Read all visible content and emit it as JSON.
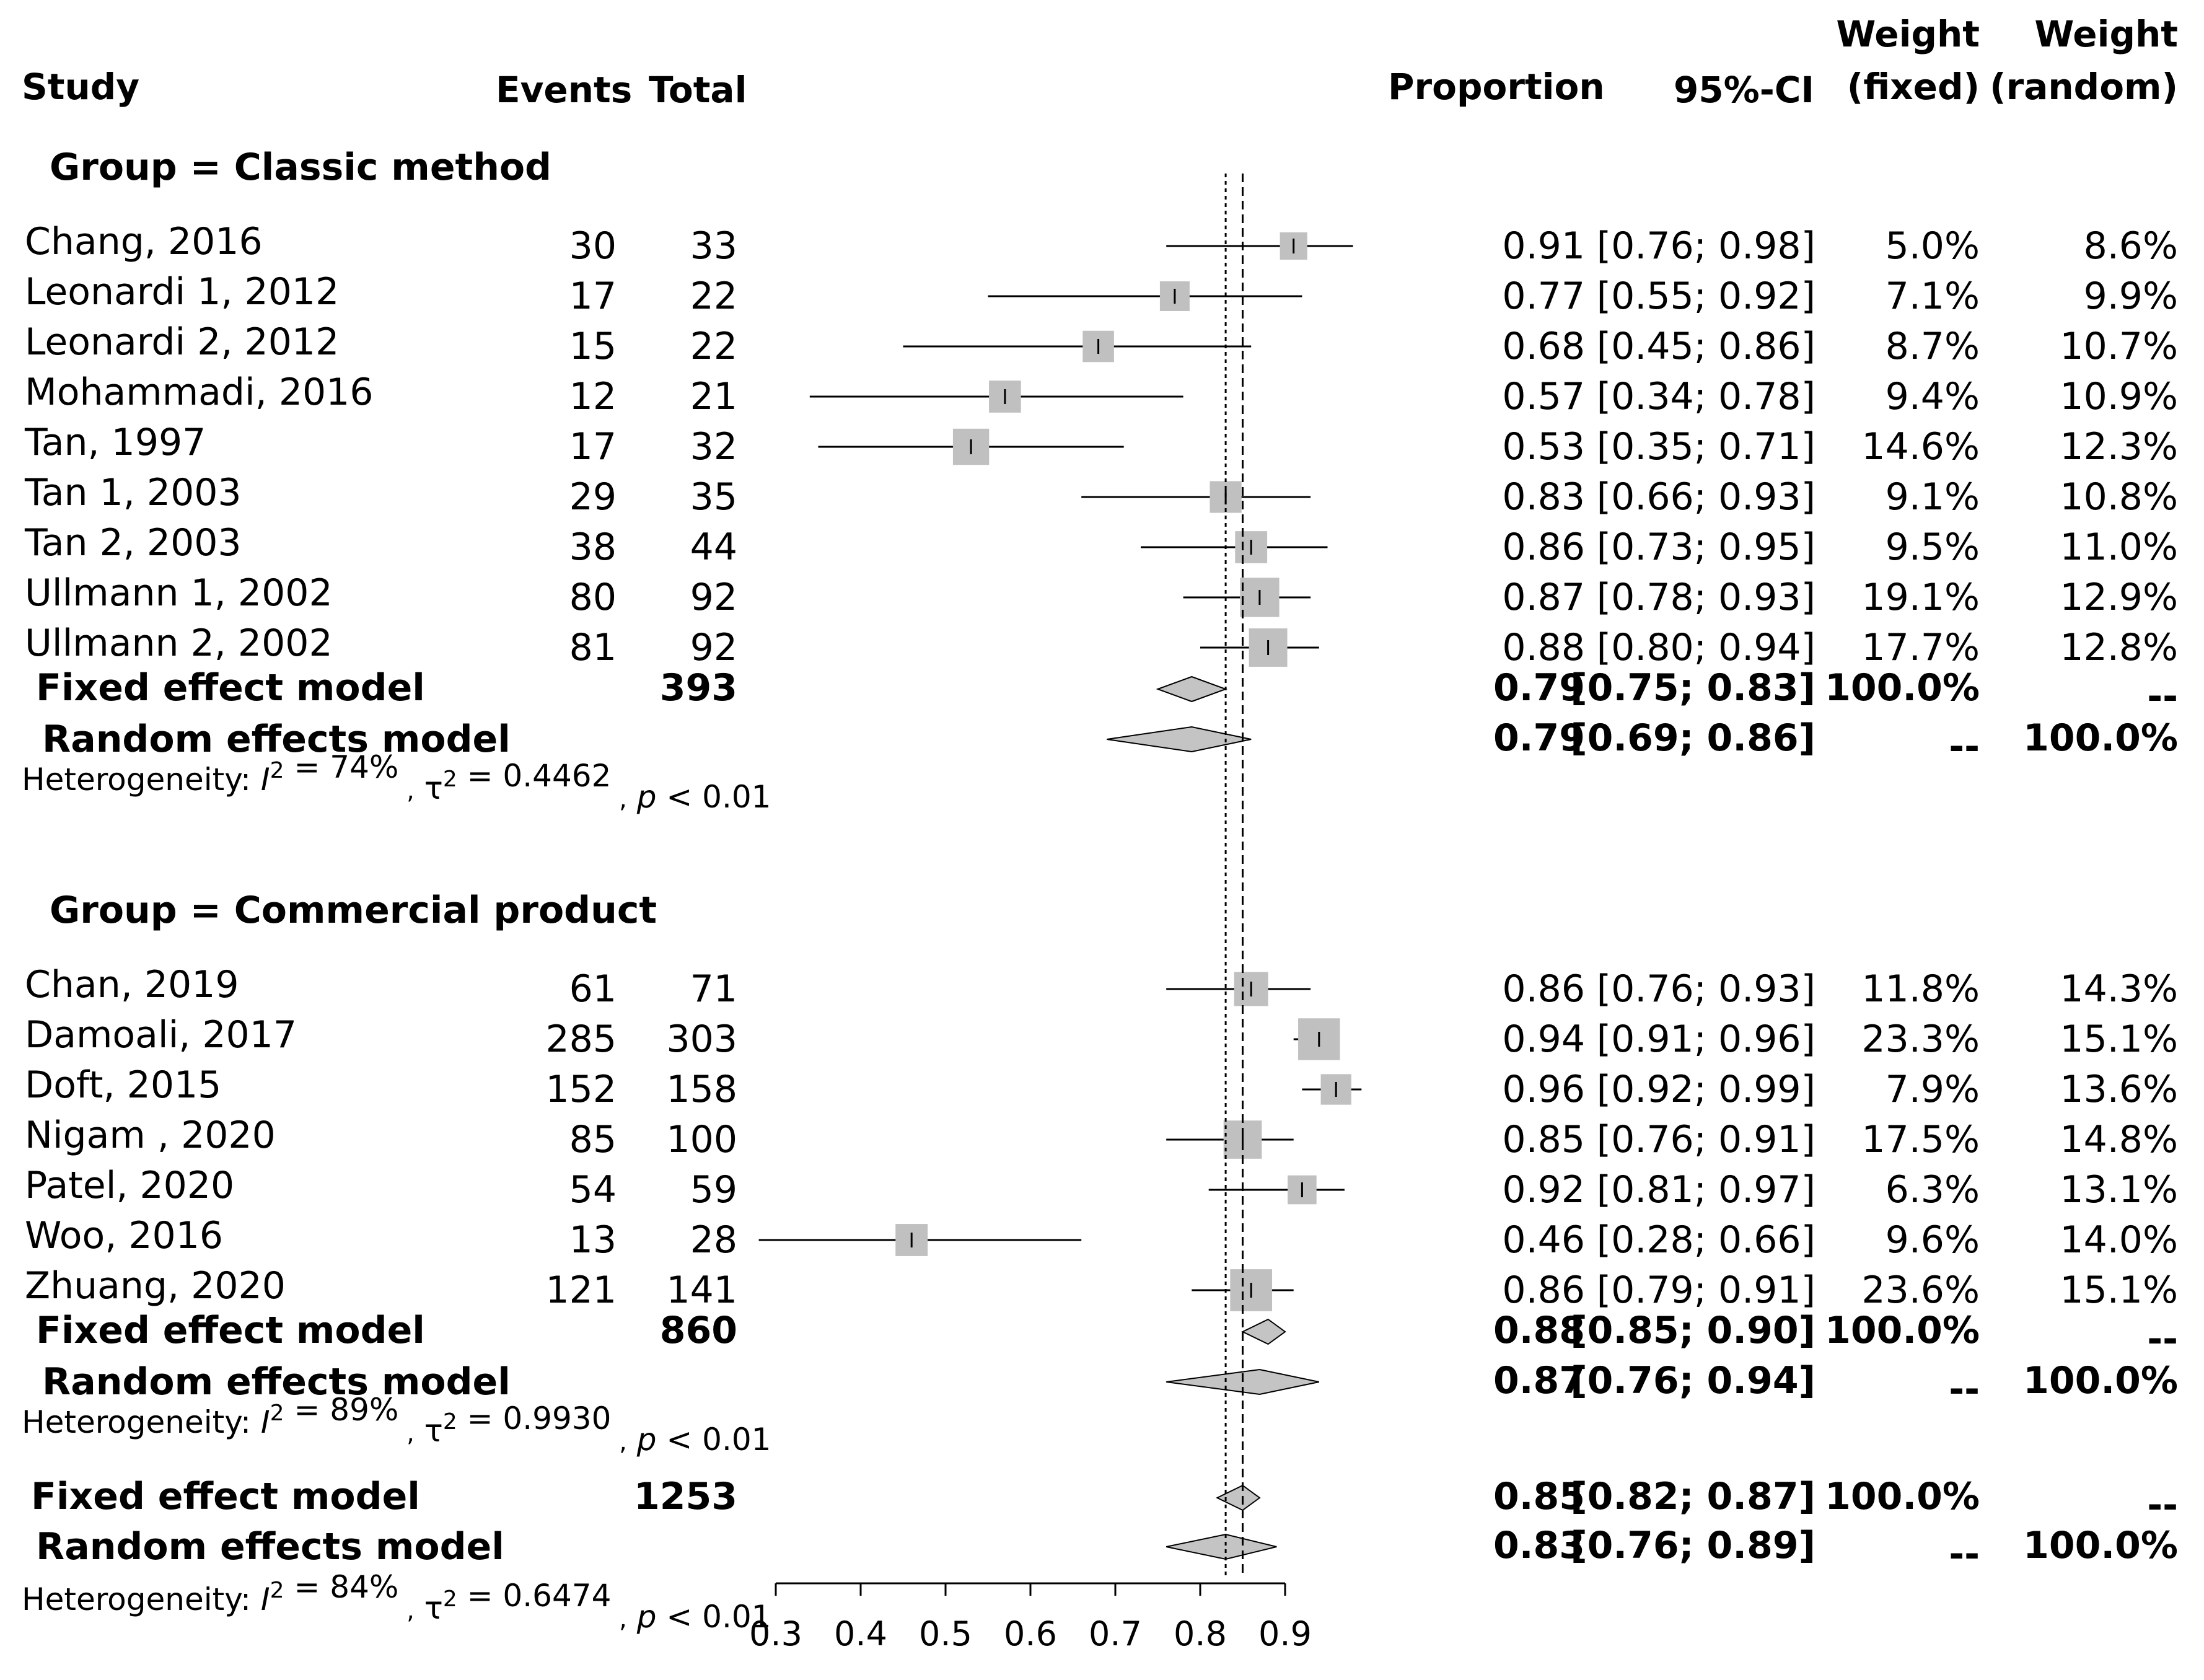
{
  "headers": {
    "study": "Study",
    "events": "Events",
    "total": "Total",
    "proportion": "Proportion",
    "ci": "95%-CI",
    "weight_fixed_1": "Weight",
    "weight_fixed_2": "(fixed)",
    "weight_random_1": "Weight",
    "weight_random_2": "(random)"
  },
  "colors": {
    "square": "#c0c0c0",
    "diamond": "#c4c4c4",
    "line": "#000000"
  },
  "chart_data": {
    "type": "forest",
    "xlim": [
      0.3,
      0.9
    ],
    "xticks": [
      0.3,
      0.4,
      0.5,
      0.6,
      0.7,
      0.8,
      0.9
    ],
    "reference_lines": {
      "fixed": 0.85,
      "random": 0.83
    },
    "groups": [
      {
        "label": "Group = Classic method",
        "studies": [
          {
            "name": "Chang, 2016",
            "events": "30",
            "total": "33",
            "prop": 0.91,
            "lo": 0.76,
            "hi": 0.98,
            "prop_text": "0.91",
            "ci_text": "[0.76; 0.98]",
            "wf": "5.0%",
            "wr": "8.6%"
          },
          {
            "name": "Leonardi 1, 2012",
            "events": "17",
            "total": "22",
            "prop": 0.77,
            "lo": 0.55,
            "hi": 0.92,
            "prop_text": "0.77",
            "ci_text": "[0.55; 0.92]",
            "wf": "7.1%",
            "wr": "9.9%"
          },
          {
            "name": "Leonardi 2, 2012",
            "events": "15",
            "total": "22",
            "prop": 0.68,
            "lo": 0.45,
            "hi": 0.86,
            "prop_text": "0.68",
            "ci_text": "[0.45; 0.86]",
            "wf": "8.7%",
            "wr": "10.7%"
          },
          {
            "name": "Mohammadi, 2016",
            "events": "12",
            "total": "21",
            "prop": 0.57,
            "lo": 0.34,
            "hi": 0.78,
            "prop_text": "0.57",
            "ci_text": "[0.34; 0.78]",
            "wf": "9.4%",
            "wr": "10.9%"
          },
          {
            "name": "Tan, 1997",
            "events": "17",
            "total": "32",
            "prop": 0.53,
            "lo": 0.35,
            "hi": 0.71,
            "prop_text": "0.53",
            "ci_text": "[0.35; 0.71]",
            "wf": "14.6%",
            "wr": "12.3%"
          },
          {
            "name": "Tan 1, 2003",
            "events": "29",
            "total": "35",
            "prop": 0.83,
            "lo": 0.66,
            "hi": 0.93,
            "prop_text": "0.83",
            "ci_text": "[0.66; 0.93]",
            "wf": "9.1%",
            "wr": "10.8%"
          },
          {
            "name": "Tan 2, 2003",
            "events": "38",
            "total": "44",
            "prop": 0.86,
            "lo": 0.73,
            "hi": 0.95,
            "prop_text": "0.86",
            "ci_text": "[0.73; 0.95]",
            "wf": "9.5%",
            "wr": "11.0%"
          },
          {
            "name": "Ullmann 1, 2002",
            "events": "80",
            "total": "92",
            "prop": 0.87,
            "lo": 0.78,
            "hi": 0.93,
            "prop_text": "0.87",
            "ci_text": "[0.78; 0.93]",
            "wf": "19.1%",
            "wr": "12.9%"
          },
          {
            "name": "Ullmann 2, 2002",
            "events": "81",
            "total": "92",
            "prop": 0.88,
            "lo": 0.8,
            "hi": 0.94,
            "prop_text": "0.88",
            "ci_text": "[0.80; 0.94]",
            "wf": "17.7%",
            "wr": "12.8%"
          }
        ],
        "fixed": {
          "label": "Fixed effect model",
          "total": "393",
          "est": 0.79,
          "lo": 0.75,
          "hi": 0.83,
          "prop_text": "0.79",
          "ci_text": "[0.75; 0.83]",
          "wf": "100.0%",
          "wr": "--"
        },
        "random": {
          "label": "Random effects model",
          "est": 0.79,
          "lo": 0.69,
          "hi": 0.86,
          "prop_text": "0.79",
          "ci_text": "[0.69; 0.86]",
          "wf": "--",
          "wr": "100.0%"
        },
        "heterogeneity": {
          "prefix": "Heterogeneity:",
          "i2": "= 74%",
          "tau2": "= 0.4462",
          "p": "< 0.01"
        }
      },
      {
        "label": "Group = Commercial product",
        "studies": [
          {
            "name": "Chan, 2019",
            "events": "61",
            "total": "71",
            "prop": 0.86,
            "lo": 0.76,
            "hi": 0.93,
            "prop_text": "0.86",
            "ci_text": "[0.76; 0.93]",
            "wf": "11.8%",
            "wr": "14.3%"
          },
          {
            "name": "Damoali, 2017",
            "events": "285",
            "total": "303",
            "prop": 0.94,
            "lo": 0.91,
            "hi": 0.96,
            "prop_text": "0.94",
            "ci_text": "[0.91; 0.96]",
            "wf": "23.3%",
            "wr": "15.1%"
          },
          {
            "name": "Doft, 2015",
            "events": "152",
            "total": "158",
            "prop": 0.96,
            "lo": 0.92,
            "hi": 0.99,
            "prop_text": "0.96",
            "ci_text": "[0.92; 0.99]",
            "wf": "7.9%",
            "wr": "13.6%"
          },
          {
            "name": "Nigam , 2020",
            "events": "85",
            "total": "100",
            "prop": 0.85,
            "lo": 0.76,
            "hi": 0.91,
            "prop_text": "0.85",
            "ci_text": "[0.76; 0.91]",
            "wf": "17.5%",
            "wr": "14.8%"
          },
          {
            "name": "Patel, 2020",
            "events": "54",
            "total": "59",
            "prop": 0.92,
            "lo": 0.81,
            "hi": 0.97,
            "prop_text": "0.92",
            "ci_text": "[0.81; 0.97]",
            "wf": "6.3%",
            "wr": "13.1%"
          },
          {
            "name": "Woo, 2016",
            "events": "13",
            "total": "28",
            "prop": 0.46,
            "lo": 0.28,
            "hi": 0.66,
            "prop_text": "0.46",
            "ci_text": "[0.28; 0.66]",
            "wf": "9.6%",
            "wr": "14.0%"
          },
          {
            "name": "Zhuang, 2020",
            "events": "121",
            "total": "141",
            "prop": 0.86,
            "lo": 0.79,
            "hi": 0.91,
            "prop_text": "0.86",
            "ci_text": "[0.79; 0.91]",
            "wf": "23.6%",
            "wr": "15.1%"
          }
        ],
        "fixed": {
          "label": "Fixed effect model",
          "total": "860",
          "est": 0.88,
          "lo": 0.85,
          "hi": 0.9,
          "prop_text": "0.88",
          "ci_text": "[0.85; 0.90]",
          "wf": "100.0%",
          "wr": "--"
        },
        "random": {
          "label": "Random effects model",
          "est": 0.87,
          "lo": 0.76,
          "hi": 0.94,
          "prop_text": "0.87",
          "ci_text": "[0.76; 0.94]",
          "wf": "--",
          "wr": "100.0%"
        },
        "heterogeneity": {
          "prefix": "Heterogeneity:",
          "i2": "= 89%",
          "tau2": "= 0.9930",
          "p": "< 0.01"
        }
      }
    ],
    "overall": {
      "fixed": {
        "label": "Fixed effect model",
        "total": "1253",
        "est": 0.85,
        "lo": 0.82,
        "hi": 0.87,
        "prop_text": "0.85",
        "ci_text": "[0.82; 0.87]",
        "wf": "100.0%",
        "wr": "--"
      },
      "random": {
        "label": "Random effects model",
        "est": 0.83,
        "lo": 0.76,
        "hi": 0.89,
        "prop_text": "0.83",
        "ci_text": "[0.76; 0.89]",
        "wf": "--",
        "wr": "100.0%"
      },
      "heterogeneity": {
        "prefix": "Heterogeneity:",
        "i2": "= 84%",
        "tau2": "= 0.6474",
        "p": "< 0.01"
      }
    }
  }
}
